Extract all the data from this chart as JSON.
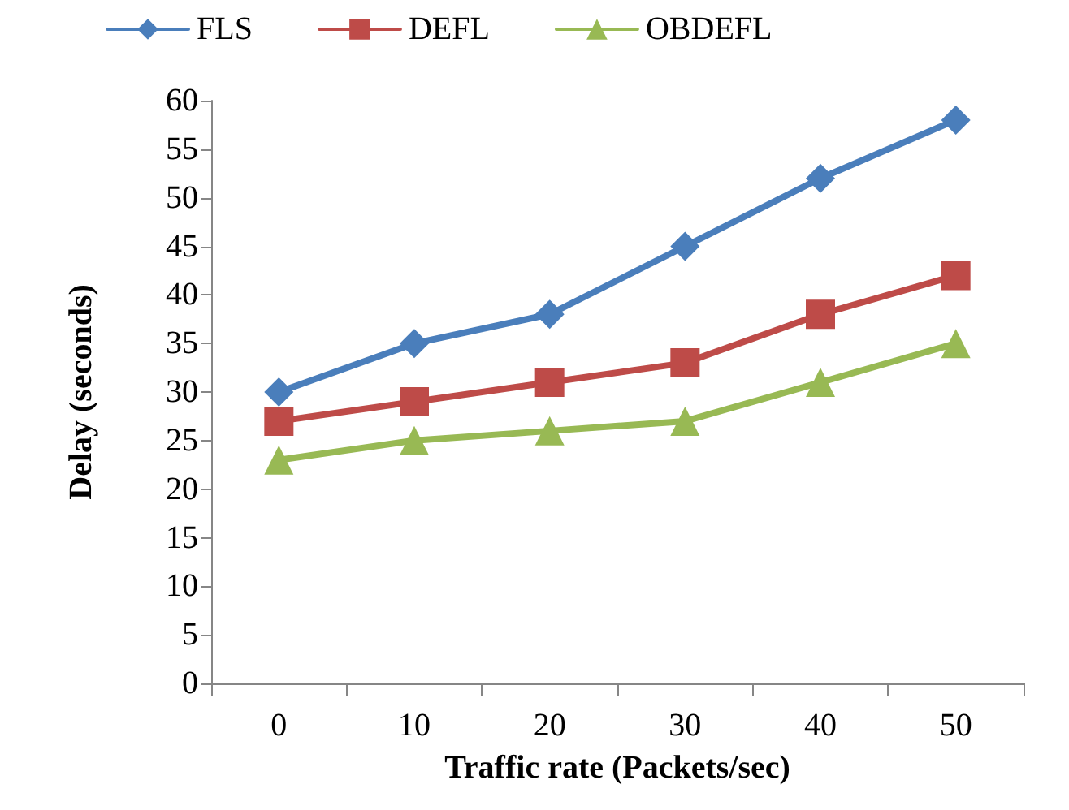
{
  "chart_data": {
    "type": "line",
    "xlabel": "Traffic rate (Packets/sec)",
    "ylabel": "Delay (seconds)",
    "categories": [
      "0",
      "10",
      "20",
      "30",
      "40",
      "50"
    ],
    "series": [
      {
        "name": "FLS",
        "color": "#4a7ebb",
        "marker": "diamond",
        "values": [
          30,
          35,
          38,
          45,
          52,
          58
        ]
      },
      {
        "name": "DEFL",
        "color": "#be4b48",
        "marker": "square",
        "values": [
          27,
          29,
          31,
          33,
          38,
          42
        ]
      },
      {
        "name": "OBDEFL",
        "color": "#98b954",
        "marker": "triangle",
        "values": [
          23,
          25,
          26,
          27,
          31,
          35
        ]
      }
    ],
    "ylim": [
      0,
      60
    ],
    "yticks": [
      0,
      5,
      10,
      15,
      20,
      25,
      30,
      35,
      40,
      45,
      50,
      55,
      60
    ],
    "grid": false,
    "legend": "top",
    "line_style": "solid"
  }
}
